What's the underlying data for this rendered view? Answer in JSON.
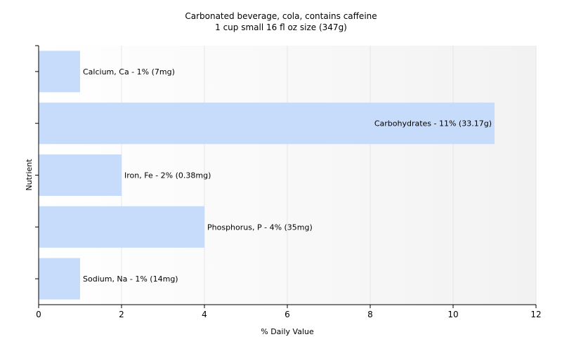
{
  "chart_data": {
    "type": "bar",
    "orientation": "horizontal",
    "title": "Carbonated beverage, cola, contains caffeine",
    "subtitle": "1 cup small 16 fl oz size (347g)",
    "xlabel": "% Daily Value",
    "ylabel": "Nutrient",
    "xlim": [
      0,
      12
    ],
    "xticks": [
      0,
      2,
      4,
      6,
      8,
      10,
      12
    ],
    "grid": true,
    "bar_color": "#c6dcfa",
    "grid_color": "#e6e6e6",
    "bars": [
      {
        "category": "Calcium, Ca",
        "value": 1,
        "label": "Calcium, Ca - 1% (7mg)"
      },
      {
        "category": "Carbohydrates",
        "value": 11,
        "label": "Carbohydrates - 11% (33.17g)"
      },
      {
        "category": "Iron, Fe",
        "value": 2,
        "label": "Iron, Fe - 2% (0.38mg)"
      },
      {
        "category": "Phosphorus, P",
        "value": 4,
        "label": "Phosphorus, P - 4% (35mg)"
      },
      {
        "category": "Sodium, Na",
        "value": 1,
        "label": "Sodium, Na - 1% (14mg)"
      }
    ]
  }
}
